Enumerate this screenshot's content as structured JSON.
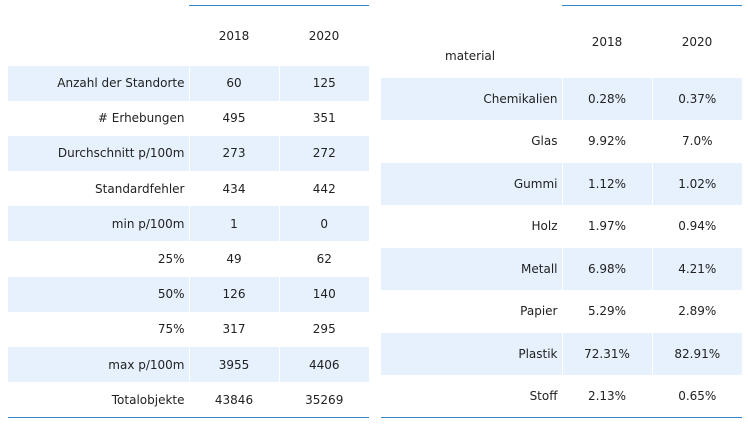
{
  "summary_table": {
    "headers": [
      "",
      "2018",
      "2020"
    ],
    "rows": [
      {
        "label": "Anzahl der Standorte",
        "v2018": "60",
        "v2020": "125"
      },
      {
        "label": "# Erhebungen",
        "v2018": "495",
        "v2020": "351"
      },
      {
        "label": "Durchschnitt p/100m",
        "v2018": "273",
        "v2020": "272"
      },
      {
        "label": "Standardfehler",
        "v2018": "434",
        "v2020": "442"
      },
      {
        "label": "min p/100m",
        "v2018": "1",
        "v2020": "0"
      },
      {
        "label": "25%",
        "v2018": "49",
        "v2020": "62"
      },
      {
        "label": "50%",
        "v2018": "126",
        "v2020": "140"
      },
      {
        "label": "75%",
        "v2018": "317",
        "v2020": "295"
      },
      {
        "label": "max p/100m",
        "v2018": "3955",
        "v2020": "4406"
      },
      {
        "label": "Totalobjekte",
        "v2018": "43846",
        "v2020": "35269"
      }
    ]
  },
  "material_table": {
    "headers": [
      "material",
      "2018",
      "2020"
    ],
    "rows": [
      {
        "label": "Chemikalien",
        "v2018": "0.28%",
        "v2020": "0.37%"
      },
      {
        "label": "Glas",
        "v2018": "9.92%",
        "v2020": "7.0%"
      },
      {
        "label": "Gummi",
        "v2018": "1.12%",
        "v2020": "1.02%"
      },
      {
        "label": "Holz",
        "v2018": "1.97%",
        "v2020": "0.94%"
      },
      {
        "label": "Metall",
        "v2018": "6.98%",
        "v2020": "4.21%"
      },
      {
        "label": "Papier",
        "v2018": "5.29%",
        "v2020": "2.89%"
      },
      {
        "label": "Plastik",
        "v2018": "72.31%",
        "v2020": "82.91%"
      },
      {
        "label": "Stoff",
        "v2018": "2.13%",
        "v2020": "0.65%"
      }
    ]
  },
  "colors": {
    "row_stripe": "#e6f1fd",
    "rule": "#2f86c4",
    "text": "#222222"
  }
}
